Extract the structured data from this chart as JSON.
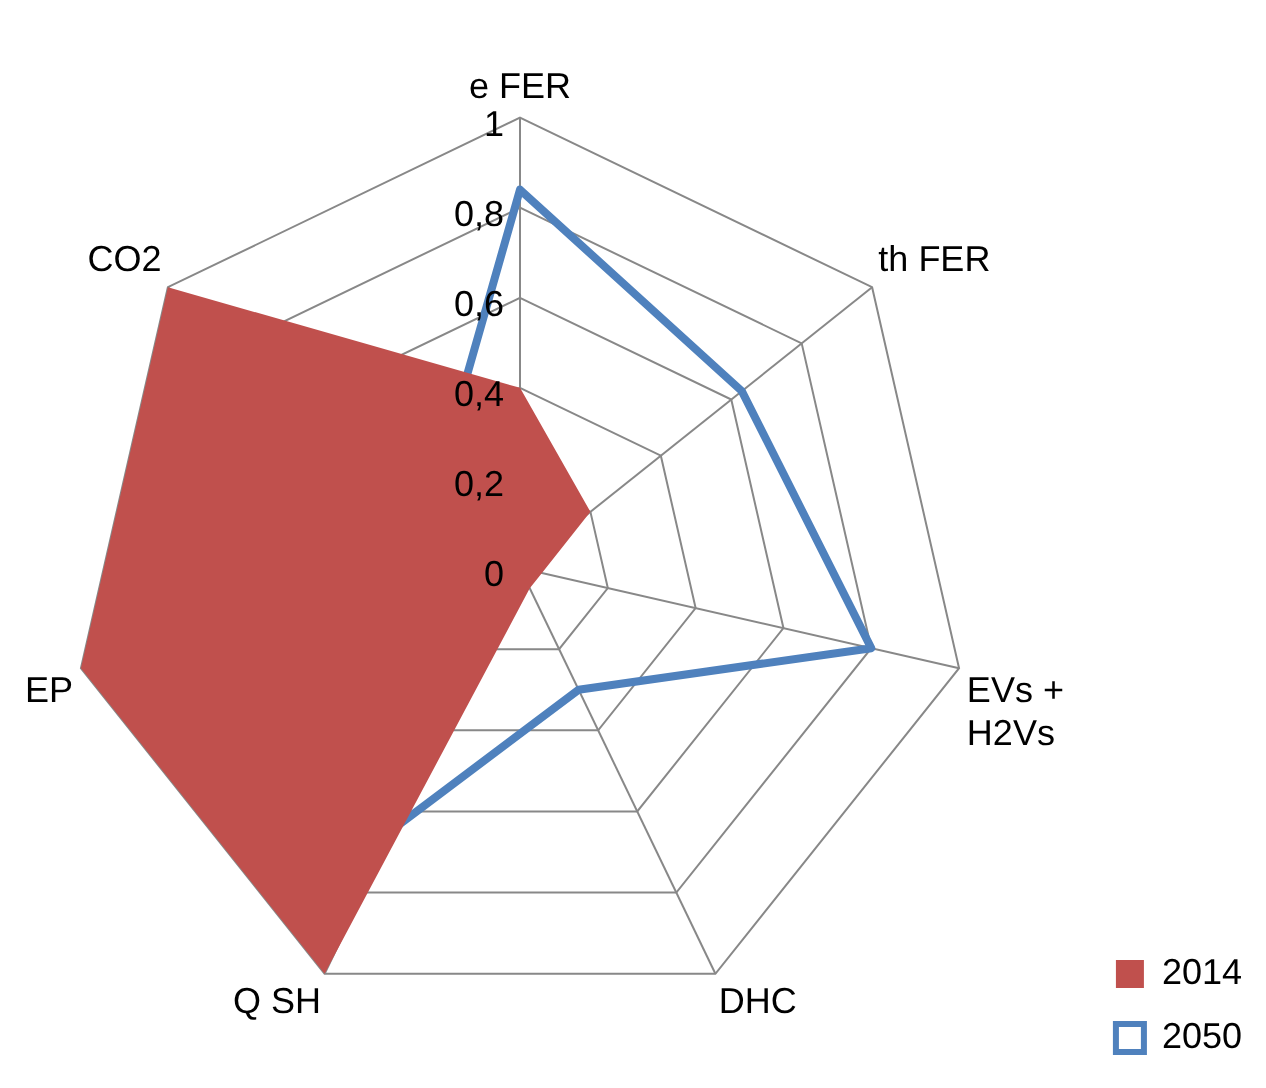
{
  "chart_data": {
    "type": "radar",
    "categories": [
      "e FER",
      "th FER",
      "EVs + H2Vs",
      "DHC",
      "Q SH",
      "EP",
      "CO2"
    ],
    "series": [
      {
        "name": "2014",
        "type": "area",
        "color": "#c0504d",
        "values": [
          0.4,
          0.2,
          0.05,
          0.05,
          1,
          1,
          1
        ]
      },
      {
        "name": "2050",
        "color": "#4f81bd",
        "values": [
          0.84,
          0.63,
          0.8,
          0.3,
          0.64,
          0.55,
          0.25
        ]
      }
    ],
    "ylim": [
      0,
      1
    ],
    "yticks": [
      {
        "value": 0,
        "label": "0"
      },
      {
        "value": 0.2,
        "label": "0,2"
      },
      {
        "value": 0.4,
        "label": "0,4"
      },
      {
        "value": 0.6,
        "label": "0,6"
      },
      {
        "value": 0.8,
        "label": "0,8"
      },
      {
        "value": 1,
        "label": "1"
      }
    ],
    "grid": true,
    "legend": "bottom right",
    "marker": "none"
  }
}
